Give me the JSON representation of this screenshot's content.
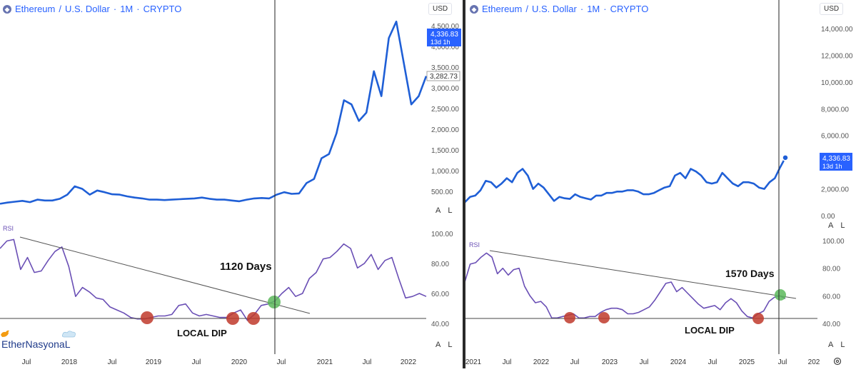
{
  "left_panel": {
    "header": {
      "symbol": "Ethereum",
      "sep1": "/",
      "quote": "U.S. Dollar",
      "interval": "1M",
      "exchange": "CRYPTO"
    },
    "currency_button": "USD",
    "price_tag": {
      "price": "4,336.83",
      "countdown": "13d 1h"
    },
    "reference_tag": "3,282.73",
    "scale_buttons": [
      "A",
      "L"
    ],
    "rsi_scale_buttons": [
      "A",
      "L"
    ],
    "watermark": "EtherNasyonaL"
  },
  "right_panel": {
    "header": {
      "symbol": "Ethereum",
      "sep1": "/",
      "quote": "U.S. Dollar",
      "interval": "1M",
      "exchange": "CRYPTO"
    },
    "currency_button": "USD",
    "price_tag": {
      "price": "4,336.83",
      "countdown": "13d 1h"
    },
    "scale_buttons": [
      "A",
      "L"
    ],
    "rsi_scale_buttons": [
      "A",
      "L"
    ],
    "settings_icon": "gear-icon"
  },
  "colors": {
    "price_line": "#1f5fd6",
    "rsi_line": "#6a4fb5",
    "dip_marker": "#c0392b",
    "break_marker": "#5cb85c",
    "accent": "#2962ff"
  },
  "chart_data": [
    {
      "type": "line",
      "panel": "left",
      "series": [
        {
          "values": [
            200,
            230,
            250,
            270,
            240,
            300,
            280,
            280,
            320,
            420,
            620,
            560,
            420,
            520,
            480,
            430,
            420,
            380,
            350,
            330,
            300,
            300,
            290,
            300,
            310,
            320,
            330,
            350,
            320,
            300,
            300,
            280,
            260,
            300,
            330,
            340,
            330,
            420,
            480,
            440,
            450,
            700,
            800,
            1300,
            1400,
            1900,
            2700,
            2600,
            2200,
            2400,
            3400,
            2800,
            4200,
            4600,
            3600,
            2600,
            2800,
            3282
          ]
        }
      ],
      "y_ticks": [
        "500.00",
        "1,000.00",
        "1,500.00",
        "2,000.00",
        "2,500.00",
        "3,000.00",
        "3,500.00",
        "4,000.00",
        "4,500.00"
      ],
      "x_ticks": [
        "Jul",
        "2018",
        "Jul",
        "2019",
        "Jul",
        "2020",
        "Jul",
        "2021",
        "Jul",
        "2022"
      ]
    },
    {
      "type": "line",
      "panel": "left",
      "indicator": "RSI",
      "series": [
        {
          "values": [
            90,
            95,
            96,
            76,
            84,
            74,
            75,
            82,
            88,
            91,
            78,
            58,
            64,
            61,
            57,
            56,
            51,
            49,
            47,
            44,
            43,
            43,
            44,
            45,
            45,
            46,
            52,
            53,
            47,
            45,
            46,
            45,
            44,
            44,
            47,
            49,
            42,
            46,
            52,
            53,
            55,
            60,
            64,
            58,
            60,
            70,
            74,
            83,
            84,
            88,
            93,
            90,
            77,
            80,
            86,
            76,
            82,
            84,
            70,
            57,
            58,
            60,
            58
          ]
        }
      ],
      "y_ticks": [
        "40.00",
        "60.00",
        "80.00",
        "100.00"
      ],
      "annotations": [
        "1120 Days",
        "LOCAL DIP"
      ]
    },
    {
      "type": "line",
      "panel": "right",
      "series": [
        {
          "values": [
            1000,
            1400,
            1500,
            1900,
            2600,
            2500,
            2100,
            2400,
            2800,
            2500,
            3200,
            3500,
            3000,
            2000,
            2400,
            2100,
            1600,
            1100,
            1400,
            1300,
            1250,
            1600,
            1400,
            1300,
            1200,
            1500,
            1500,
            1700,
            1700,
            1800,
            1800,
            1900,
            1900,
            1800,
            1600,
            1600,
            1700,
            1900,
            2100,
            2200,
            3000,
            3200,
            2800,
            3500,
            3300,
            3000,
            2500,
            2400,
            2500,
            3200,
            2800,
            2400,
            2200,
            2500,
            2500,
            2400,
            2100,
            2000,
            2500,
            2800,
            3600,
            4336
          ]
        }
      ],
      "y_ticks": [
        "0.00",
        "2,000.00",
        "4,000.00",
        "6,000.00",
        "8,000.00",
        "10,000.00",
        "12,000.00",
        "14,000.00"
      ],
      "x_ticks": [
        "2021",
        "Jul",
        "2022",
        "Jul",
        "2023",
        "Jul",
        "2024",
        "Jul",
        "2025",
        "Jul",
        "202"
      ]
    },
    {
      "type": "line",
      "panel": "right",
      "indicator": "RSI",
      "series": [
        {
          "values": [
            70,
            83,
            84,
            88,
            91,
            88,
            76,
            80,
            75,
            79,
            80,
            67,
            60,
            55,
            56,
            52,
            44,
            44,
            45,
            46,
            47,
            44,
            44,
            45,
            45,
            48,
            50,
            51,
            51,
            50,
            47,
            47,
            48,
            50,
            52,
            57,
            63,
            69,
            70,
            63,
            66,
            62,
            58,
            54,
            51,
            52,
            53,
            50,
            55,
            58,
            55,
            49,
            45,
            44,
            47,
            49,
            56,
            59,
            60,
            58
          ]
        }
      ],
      "y_ticks": [
        "40.00",
        "60.00",
        "80.00",
        "100.00"
      ],
      "annotations": [
        "1570 Days",
        "LOCAL DIP"
      ]
    }
  ],
  "labels": {
    "rsi": "RSI"
  }
}
